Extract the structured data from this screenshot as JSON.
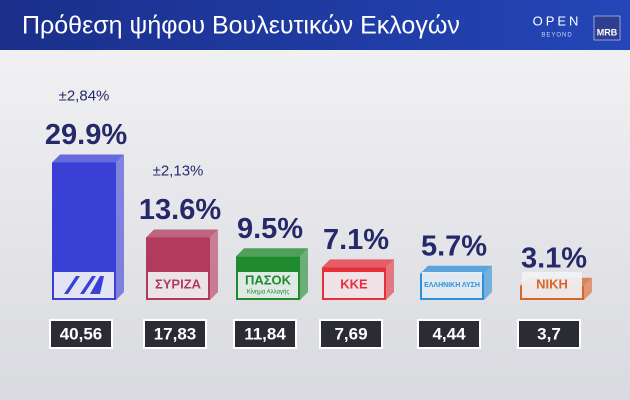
{
  "chart_data": {
    "type": "bar",
    "title": "Πρόθεση ψήφου Βουλευτικών Εκλογών",
    "brand": {
      "channel": "OPEN",
      "channel_sub": "BEYOND",
      "pollster": "MRB"
    },
    "categories": [
      null,
      "ΣΥΡΙΖΑ",
      "ΠΑΣΟΚ",
      "ΚΚΕ",
      "ΕΛΛΗΝΙΚΗ ΛΥΣΗ",
      "ΝΙΚΗ"
    ],
    "category_sublabels": [
      null,
      null,
      "Κίνημα Αλλαγής",
      null,
      null,
      null
    ],
    "values": [
      29.9,
      13.6,
      9.5,
      7.1,
      5.7,
      3.1
    ],
    "value_labels": [
      "29.9%",
      "13.6%",
      "9.5%",
      "7.1%",
      "5.7%",
      "3.1%"
    ],
    "error_labels": [
      "±2,84%",
      "±2,13%",
      null,
      null,
      null,
      null
    ],
    "raw_labels": [
      "40,56",
      "17,83",
      "11,84",
      "7,69",
      "4,44",
      "3,7"
    ],
    "colors": [
      "#3a3fd6",
      "#b23a5c",
      "#1f8a2e",
      "#e5303a",
      "#2f8fd8",
      "#d8652c"
    ]
  }
}
